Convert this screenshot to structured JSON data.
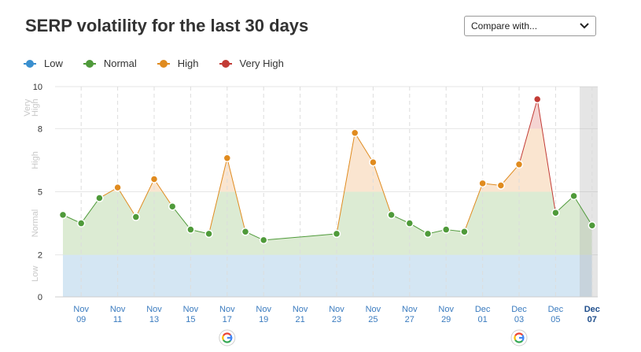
{
  "header": {
    "title": "SERP volatility for the last 30 days",
    "compare_label": "Compare with..."
  },
  "legend": [
    {
      "label": "Low",
      "color": "#3a8fcf"
    },
    {
      "label": "Normal",
      "color": "#4f9a3a"
    },
    {
      "label": "High",
      "color": "#e08b1f"
    },
    {
      "label": "Very High",
      "color": "#c23b35"
    }
  ],
  "chart_data": {
    "type": "line",
    "ylim": [
      0,
      10
    ],
    "y_ticks": [
      0,
      2,
      5,
      8,
      10
    ],
    "bands": [
      {
        "label": "Low",
        "from": 0,
        "to": 2,
        "color": "#d4e6f3"
      },
      {
        "label": "Normal",
        "from": 2,
        "to": 5,
        "color": "#dcebd3"
      },
      {
        "label": "High",
        "from": 5,
        "to": 8,
        "color": "#fae5d0"
      },
      {
        "label": "Very High",
        "from": 8,
        "to": 10,
        "color": "#f5d4d2"
      }
    ],
    "band_labels": [
      {
        "text": "Low",
        "y": 1.1
      },
      {
        "text": "Normal",
        "y": 3.5
      },
      {
        "text": "High",
        "y": 6.5
      },
      {
        "text": "Very High",
        "y": 9.0
      }
    ],
    "x_ticks": [
      {
        "top": "Nov",
        "bottom": "09",
        "day": 9
      },
      {
        "top": "Nov",
        "bottom": "11",
        "day": 11
      },
      {
        "top": "Nov",
        "bottom": "13",
        "day": 13
      },
      {
        "top": "Nov",
        "bottom": "15",
        "day": 15
      },
      {
        "top": "Nov",
        "bottom": "17",
        "day": 17
      },
      {
        "top": "Nov",
        "bottom": "19",
        "day": 19
      },
      {
        "top": "Nov",
        "bottom": "21",
        "day": 21
      },
      {
        "top": "Nov",
        "bottom": "23",
        "day": 23
      },
      {
        "top": "Nov",
        "bottom": "25",
        "day": 25
      },
      {
        "top": "Nov",
        "bottom": "27",
        "day": 27
      },
      {
        "top": "Nov",
        "bottom": "29",
        "day": 29
      },
      {
        "top": "Dec",
        "bottom": "01",
        "day": 31
      },
      {
        "top": "Dec",
        "bottom": "03",
        "day": 33
      },
      {
        "top": "Dec",
        "bottom": "05",
        "day": 35
      },
      {
        "top": "Dec",
        "bottom": "07",
        "day": 37
      }
    ],
    "points": [
      {
        "day": 8,
        "value": 3.9
      },
      {
        "day": 9,
        "value": 3.5
      },
      {
        "day": 10,
        "value": 4.7
      },
      {
        "day": 11,
        "value": 5.2
      },
      {
        "day": 12,
        "value": 3.8
      },
      {
        "day": 13,
        "value": 5.6
      },
      {
        "day": 14,
        "value": 4.3
      },
      {
        "day": 15,
        "value": 3.2
      },
      {
        "day": 16,
        "value": 3.0
      },
      {
        "day": 17,
        "value": 6.6
      },
      {
        "day": 18,
        "value": 3.1
      },
      {
        "day": 19,
        "value": 2.7
      },
      {
        "day": 23,
        "value": 3.0
      },
      {
        "day": 24,
        "value": 7.8
      },
      {
        "day": 25,
        "value": 6.4
      },
      {
        "day": 26,
        "value": 3.9
      },
      {
        "day": 27,
        "value": 3.5
      },
      {
        "day": 28,
        "value": 3.0
      },
      {
        "day": 29,
        "value": 3.2
      },
      {
        "day": 30,
        "value": 3.1
      },
      {
        "day": 31,
        "value": 5.4
      },
      {
        "day": 32,
        "value": 5.3
      },
      {
        "day": 33,
        "value": 6.3
      },
      {
        "day": 34,
        "value": 9.4
      },
      {
        "day": 35,
        "value": 4.0
      },
      {
        "day": 36,
        "value": 4.8
      },
      {
        "day": 37,
        "value": 3.4
      }
    ],
    "google_update_days": [
      17,
      33
    ],
    "grid": true
  }
}
